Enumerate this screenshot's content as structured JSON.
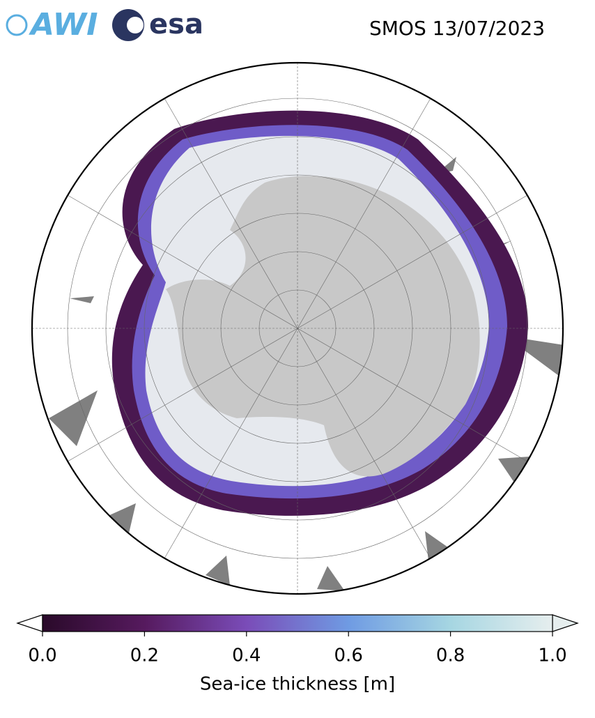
{
  "header": {
    "logos": [
      "AWI",
      "esa"
    ],
    "title": "SMOS 13/07/2023"
  },
  "colorbar": {
    "label": "Sea-ice thickness [m]",
    "lim": [
      0,
      1
    ],
    "ticks": [
      {
        "value": 0,
        "label": "0.0"
      },
      0.2,
      0.4,
      0.6,
      0.8,
      {
        "value": 1,
        "label": "1.0"
      }
    ],
    "colormap": [
      "#2a0a2a",
      "#561a5e",
      "#7a4cb8",
      "#6f9be3",
      "#a6d6e2",
      "#e6eeee"
    ]
  }
}
